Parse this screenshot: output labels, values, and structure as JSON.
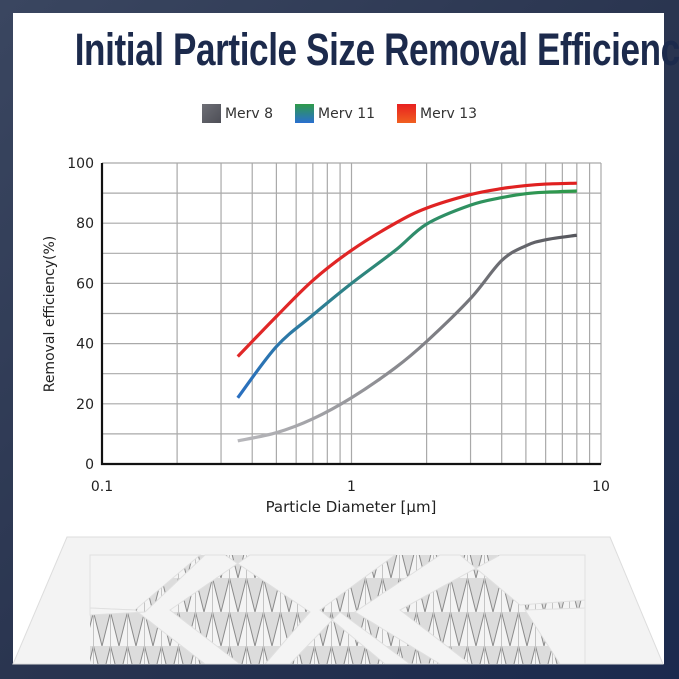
{
  "title": "Initial Particle Size Removal Efficiency",
  "chart_data": {
    "type": "line",
    "title": "Initial Particle Size Removal Efficiency",
    "xlabel": "Particle Diameter [µm]",
    "ylabel": "Removal efficiency(%)",
    "xscale": "log",
    "xlim": [
      0.1,
      10
    ],
    "ylim": [
      0,
      100
    ],
    "xticks": [
      "0.1",
      "1",
      "10"
    ],
    "yticks": [
      "0",
      "20",
      "40",
      "60",
      "80",
      "100"
    ],
    "grid": true,
    "legend_position": "top-center",
    "series": [
      {
        "name": "Merv 8",
        "colors": [
          "#b0b0b4",
          "#55565c"
        ],
        "x": [
          0.35,
          0.5,
          0.7,
          1,
          1.5,
          2,
          3,
          4,
          5,
          6,
          8
        ],
        "y": [
          7.7,
          10.4,
          15,
          22,
          32,
          40.7,
          55,
          67.6,
          72.5,
          74.5,
          76
        ]
      },
      {
        "name": "Merv 11",
        "colors": [
          "#2a6fd0",
          "#2f9a4a"
        ],
        "x": [
          0.35,
          0.5,
          0.7,
          1,
          1.5,
          2,
          3,
          4,
          5,
          6,
          8
        ],
        "y": [
          22,
          39,
          49.5,
          60,
          71,
          79.7,
          86,
          88.5,
          89.8,
          90.3,
          90.7
        ]
      },
      {
        "name": "Merv 13",
        "colors": [
          "#f06020",
          "#e02020"
        ],
        "x": [
          0.35,
          0.5,
          0.7,
          1,
          1.5,
          2,
          3,
          4,
          5,
          6,
          8
        ],
        "y": [
          35.7,
          49,
          61,
          71,
          80,
          85,
          89.5,
          91.5,
          92.5,
          93,
          93.3
        ]
      }
    ]
  }
}
